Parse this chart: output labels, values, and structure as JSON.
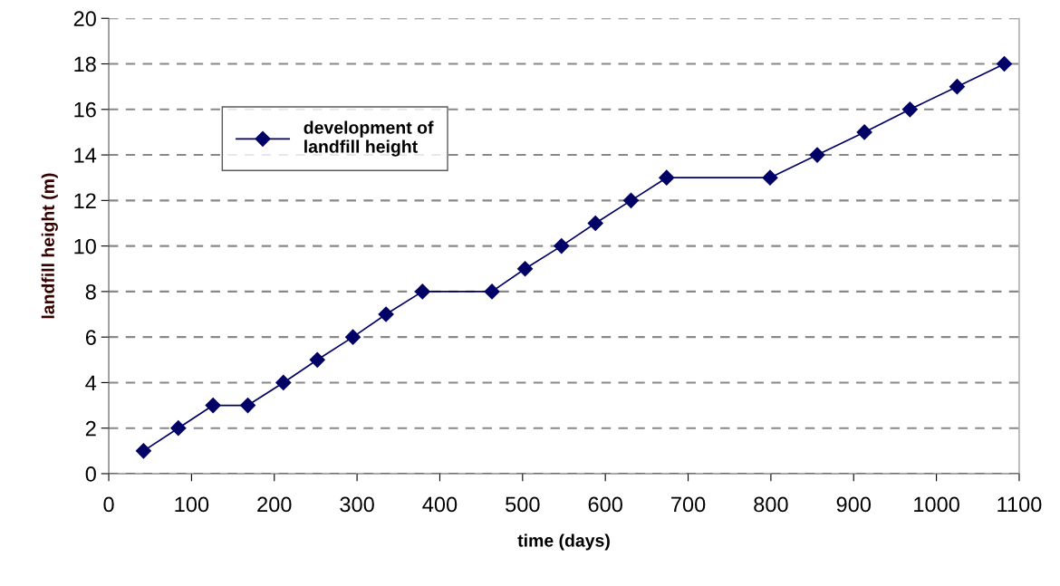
{
  "chart_data": {
    "type": "line",
    "xlabel": "time (days)",
    "ylabel": "landfill height (m)",
    "x": [
      42,
      84,
      126,
      168,
      211,
      252,
      295,
      335,
      379,
      463,
      503,
      547,
      588,
      631,
      674,
      799,
      856,
      913,
      968,
      1025,
      1082
    ],
    "series": [
      {
        "name": "development of\nlandfill height",
        "color": "#000066",
        "values": [
          1,
          2,
          3,
          3,
          4,
          5,
          6,
          7,
          8,
          8,
          9,
          10,
          11,
          12,
          13,
          13,
          14,
          15,
          16,
          17,
          18
        ]
      }
    ],
    "xlim": [
      0,
      1100
    ],
    "xticks": [
      0,
      100,
      200,
      300,
      400,
      500,
      600,
      700,
      800,
      900,
      1000,
      1100
    ],
    "ylim": [
      0,
      20
    ],
    "yticks": [
      0,
      2,
      4,
      6,
      8,
      10,
      12,
      14,
      16,
      18,
      20
    ],
    "grid": "y",
    "legend": "top left",
    "marker": "diamond",
    "line_style": "solid"
  }
}
